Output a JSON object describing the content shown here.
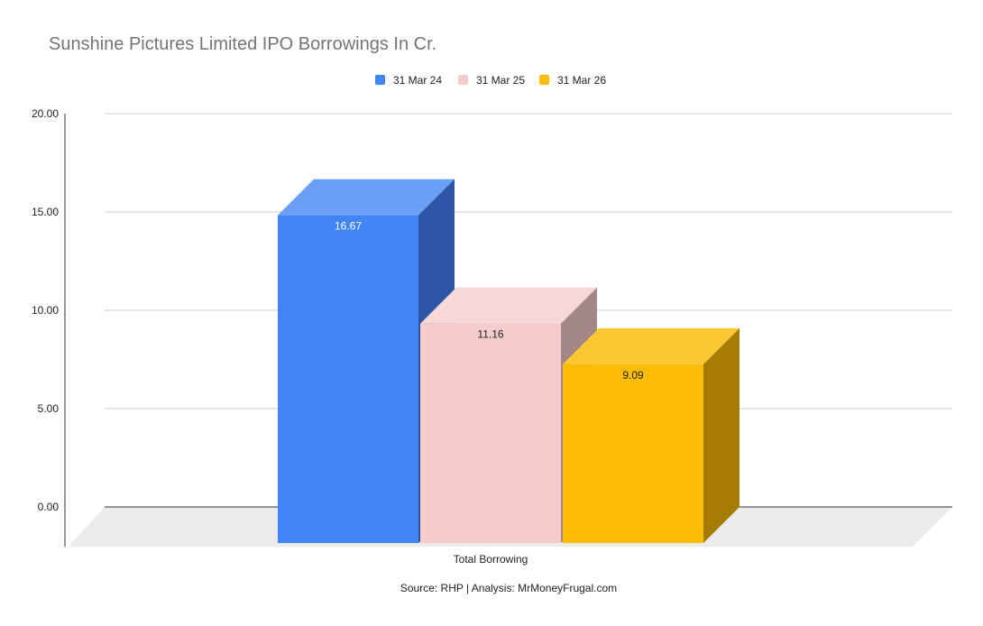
{
  "chart_data": {
    "type": "bar",
    "title": "Sunshine Pictures Limited IPO Borrowings In Cr.",
    "categories": [
      "Total Borrowing"
    ],
    "series": [
      {
        "name": "31 Mar 24",
        "values": [
          16.67
        ],
        "value_labels": [
          "16.67"
        ],
        "color": "#4285f4",
        "top_color": "#6b9ff6",
        "side_color": "#2c56a3",
        "label_color": "#ffffff"
      },
      {
        "name": "31 Mar 25",
        "values": [
          11.16
        ],
        "value_labels": [
          "11.16"
        ],
        "color": "#f4cccc",
        "top_color": "#f6d8d8",
        "side_color": "#a38686",
        "label_color": "#222222"
      },
      {
        "name": "31 Mar 26",
        "values": [
          9.09
        ],
        "value_labels": [
          "9.09"
        ],
        "color": "#fbbc04",
        "top_color": "#fbc833",
        "side_color": "#a67c00",
        "label_color": "#222222"
      }
    ],
    "y_ticks": [
      "0.00",
      "5.00",
      "10.00",
      "15.00",
      "20.00"
    ],
    "ylim": [
      0,
      20
    ],
    "xlabel": "",
    "ylabel": "",
    "grid": true,
    "legend_position": "top-center",
    "source": "Source: RHP | Analysis: MrMoneyFrugal.com",
    "style": "3d"
  }
}
